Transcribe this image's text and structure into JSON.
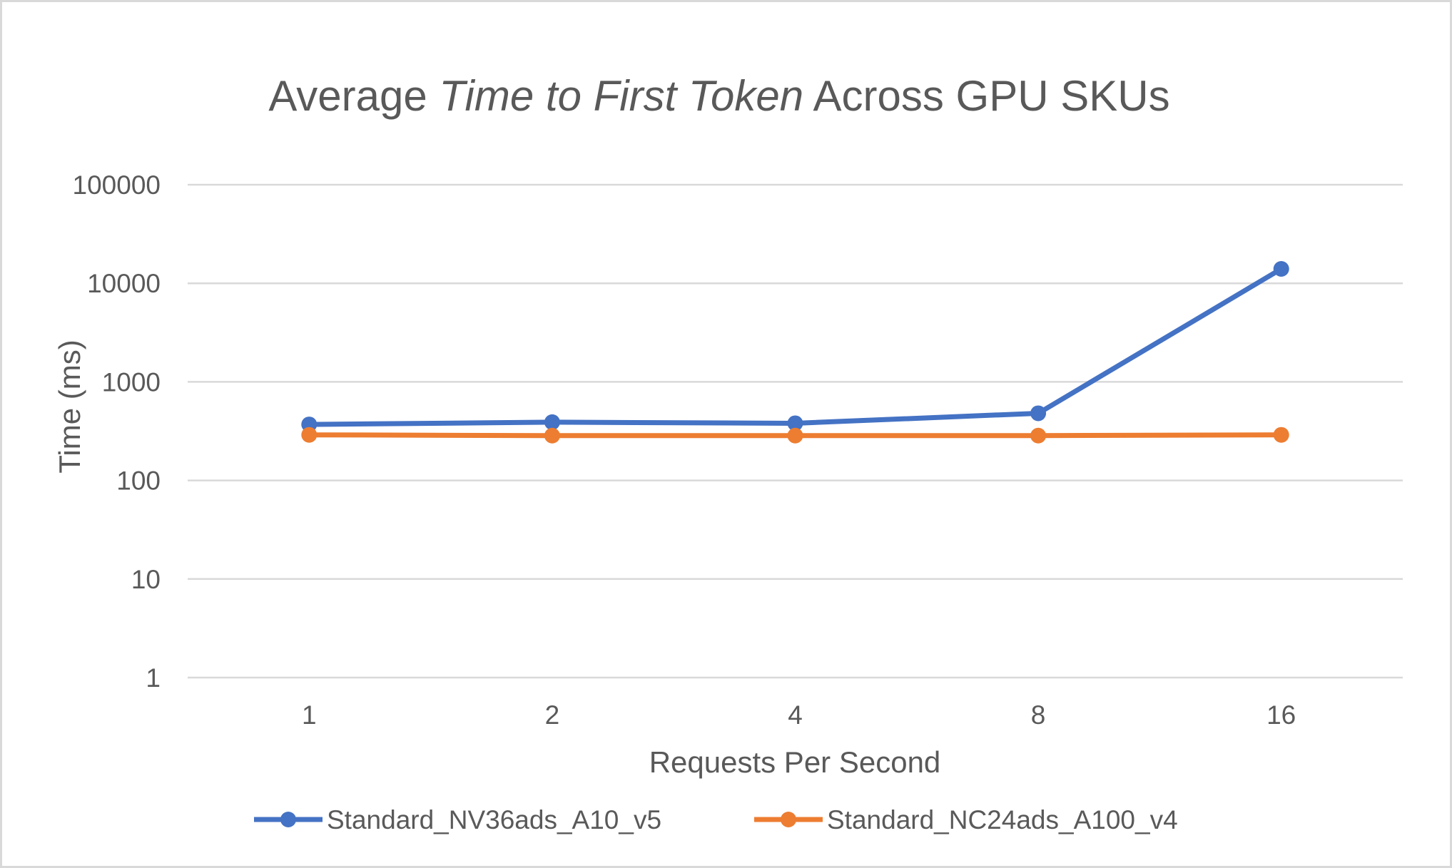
{
  "chart_data": {
    "type": "line",
    "title_parts": [
      {
        "text": "Average ",
        "italic": false
      },
      {
        "text": "Time to First Token",
        "italic": true
      },
      {
        "text": " Across GPU SKUs",
        "italic": false
      }
    ],
    "xlabel": "Requests Per Second",
    "ylabel": "Time (ms)",
    "y_scale": "log",
    "ylim": [
      1,
      100000
    ],
    "y_ticks": [
      1,
      10,
      100,
      1000,
      10000,
      100000
    ],
    "categories": [
      "1",
      "2",
      "4",
      "8",
      "16"
    ],
    "grid": true,
    "legend_position": "bottom",
    "series": [
      {
        "name": "Standard_NV36ads_A10_v5",
        "color": "#4472C4",
        "values": [
          370,
          390,
          380,
          480,
          14000
        ]
      },
      {
        "name": "Standard_NC24ads_A100_v4",
        "color": "#ED7D31",
        "values": [
          290,
          285,
          285,
          285,
          290
        ]
      }
    ]
  }
}
